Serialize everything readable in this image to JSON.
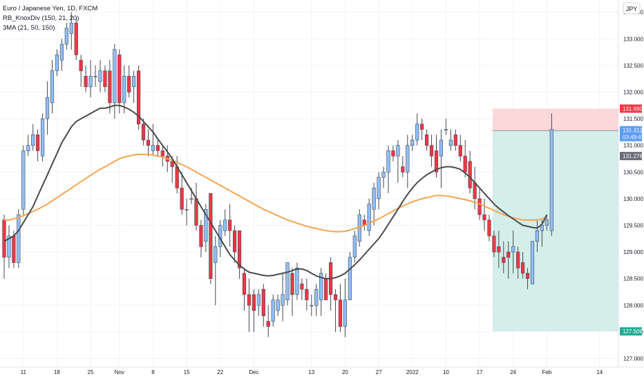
{
  "header": {
    "symbol_line": "Euro / Japanese Yen, 1D, FXCM",
    "indicator_1": "RB_KnoxDiv (150, 21, 20)",
    "indicator_2": "3MA (21, 50, 150)",
    "currency_badge": "JPY"
  },
  "colors": {
    "up": "#90bff9",
    "down": "#f23645",
    "wick": "#434651",
    "ma_fast": "#4a4a4a",
    "ma_slow": "#f7a350",
    "stop_zone": "#fbd1d5",
    "target_zone": "#cdebe5",
    "stop_tag": "#f23645",
    "entry_tag": "#5b9cf6",
    "current_tag": "#6a6d78",
    "target_tag": "#22ab94"
  },
  "price_tags": {
    "stop": "131.690",
    "current_price": "131.312",
    "countdown": "03:49:47",
    "entry": "131.276",
    "target": "127.509"
  },
  "chart_data": {
    "type": "candlestick",
    "x_ticks": [
      "11",
      "18",
      "25",
      "Nov",
      "8",
      "15",
      "22",
      "Dec",
      "13",
      "20",
      "27",
      "2022",
      "10",
      "17",
      "24",
      "Feb",
      "14"
    ],
    "y_ticks": [
      "127.000",
      "127.500",
      "128.000",
      "128.500",
      "129.000",
      "129.500",
      "130.000",
      "130.500",
      "131.000",
      "131.500",
      "132.000",
      "132.500",
      "133.000",
      "133.500"
    ],
    "ylim": [
      126.8,
      133.9
    ],
    "candles": [
      [
        129.6,
        129.7,
        128.5,
        128.9
      ],
      [
        128.9,
        129.5,
        128.7,
        129.3
      ],
      [
        129.3,
        129.4,
        128.7,
        128.8
      ],
      [
        128.8,
        129.8,
        128.7,
        129.7
      ],
      [
        129.8,
        131.0,
        129.7,
        130.9
      ],
      [
        130.9,
        131.2,
        130.8,
        131.0
      ],
      [
        131.0,
        131.4,
        130.9,
        131.2
      ],
      [
        131.2,
        131.3,
        130.7,
        130.9
      ],
      [
        130.8,
        131.6,
        130.7,
        131.5
      ],
      [
        131.5,
        132.2,
        131.2,
        131.9
      ],
      [
        131.8,
        132.6,
        131.6,
        132.4
      ],
      [
        132.4,
        132.8,
        132.3,
        132.7
      ],
      [
        132.6,
        133.0,
        132.4,
        132.9
      ],
      [
        132.9,
        133.3,
        132.8,
        133.2
      ],
      [
        133.1,
        133.5,
        132.8,
        133.3
      ],
      [
        133.3,
        133.4,
        132.6,
        132.7
      ],
      [
        132.6,
        132.7,
        132.1,
        132.4
      ],
      [
        132.3,
        132.5,
        132.0,
        132.1
      ],
      [
        132.1,
        132.6,
        131.9,
        132.3
      ],
      [
        132.3,
        132.5,
        132.1,
        132.3
      ],
      [
        132.2,
        132.6,
        132.0,
        132.4
      ],
      [
        132.4,
        132.5,
        132.0,
        132.1
      ],
      [
        132.4,
        132.6,
        131.6,
        131.8
      ],
      [
        131.8,
        132.9,
        131.5,
        132.8
      ],
      [
        132.7,
        132.8,
        131.6,
        131.8
      ],
      [
        131.8,
        132.5,
        131.6,
        132.3
      ],
      [
        132.3,
        132.5,
        131.9,
        132.0
      ],
      [
        132.1,
        132.4,
        131.8,
        132.3
      ],
      [
        132.4,
        132.5,
        131.3,
        131.4
      ],
      [
        131.4,
        131.5,
        131.0,
        131.1
      ],
      [
        131.1,
        131.3,
        130.8,
        131.0
      ],
      [
        130.9,
        131.4,
        130.8,
        131.0
      ],
      [
        131.0,
        131.1,
        130.8,
        130.9
      ],
      [
        130.9,
        131.0,
        130.6,
        130.8
      ],
      [
        130.8,
        131.0,
        130.5,
        130.7
      ],
      [
        130.7,
        130.8,
        130.3,
        130.6
      ],
      [
        130.6,
        130.8,
        130.1,
        130.2
      ],
      [
        130.2,
        130.5,
        129.7,
        129.8
      ],
      [
        129.8,
        130.0,
        129.5,
        129.8
      ],
      [
        130.0,
        130.2,
        129.9,
        130.0
      ],
      [
        130.0,
        130.3,
        129.4,
        129.5
      ],
      [
        129.5,
        129.6,
        128.9,
        129.1
      ],
      [
        129.2,
        129.9,
        129.0,
        129.8
      ],
      [
        130.1,
        130.1,
        128.4,
        128.5
      ],
      [
        128.8,
        129.3,
        128.0,
        129.1
      ],
      [
        129.1,
        129.6,
        128.9,
        129.5
      ],
      [
        129.4,
        129.8,
        129.3,
        129.6
      ],
      [
        129.6,
        129.9,
        129.1,
        129.4
      ],
      [
        129.4,
        129.5,
        128.8,
        129.0
      ],
      [
        129.4,
        129.4,
        128.5,
        128.7
      ],
      [
        128.6,
        128.7,
        127.9,
        128.2
      ],
      [
        128.2,
        128.5,
        127.5,
        128.0
      ],
      [
        128.2,
        128.3,
        127.5,
        127.9
      ],
      [
        128.0,
        128.3,
        127.8,
        128.2
      ],
      [
        128.3,
        128.4,
        127.6,
        127.8
      ],
      [
        127.7,
        128.0,
        127.4,
        127.6
      ],
      [
        127.7,
        128.2,
        127.6,
        128.1
      ],
      [
        127.9,
        128.2,
        127.8,
        128.1
      ],
      [
        128.0,
        128.6,
        127.7,
        128.2
      ],
      [
        128.1,
        128.8,
        128.0,
        128.8
      ],
      [
        128.6,
        128.7,
        127.8,
        128.2
      ],
      [
        128.2,
        128.8,
        128.1,
        128.7
      ],
      [
        128.4,
        128.5,
        128.1,
        128.3
      ],
      [
        128.3,
        128.5,
        127.9,
        128.1
      ],
      [
        128.0,
        128.2,
        127.8,
        128.0
      ],
      [
        128.0,
        128.4,
        127.8,
        128.3
      ],
      [
        128.1,
        128.7,
        127.8,
        128.6
      ],
      [
        128.5,
        128.6,
        128.1,
        128.1
      ],
      [
        128.8,
        128.9,
        127.9,
        128.2
      ],
      [
        128.2,
        128.3,
        127.5,
        128.1
      ],
      [
        128.1,
        128.4,
        127.5,
        127.6
      ],
      [
        127.6,
        128.5,
        127.4,
        128.1
      ],
      [
        128.1,
        129.0,
        128.1,
        128.9
      ],
      [
        128.9,
        129.4,
        128.8,
        129.3
      ],
      [
        129.2,
        129.8,
        129.1,
        129.7
      ],
      [
        129.6,
        129.7,
        129.4,
        129.5
      ],
      [
        129.4,
        130.0,
        129.3,
        129.9
      ],
      [
        129.8,
        130.3,
        129.5,
        130.2
      ],
      [
        130.0,
        130.5,
        129.8,
        130.4
      ],
      [
        130.4,
        130.6,
        130.2,
        130.5
      ],
      [
        130.5,
        131.0,
        130.1,
        130.9
      ],
      [
        130.9,
        131.0,
        130.7,
        130.8
      ],
      [
        130.8,
        131.1,
        130.3,
        131.0
      ],
      [
        130.6,
        130.8,
        130.4,
        130.5
      ],
      [
        130.5,
        131.2,
        130.2,
        131.0
      ],
      [
        131.0,
        131.2,
        130.9,
        131.1
      ],
      [
        131.1,
        131.6,
        131.0,
        131.4
      ],
      [
        131.4,
        131.5,
        131.1,
        131.3
      ],
      [
        131.2,
        131.3,
        130.9,
        131.0
      ],
      [
        131.0,
        131.2,
        130.6,
        130.8
      ],
      [
        130.9,
        131.2,
        130.4,
        130.5
      ],
      [
        130.8,
        131.3,
        130.2,
        131.1
      ],
      [
        131.3,
        131.5,
        131.2,
        131.3
      ],
      [
        131.0,
        131.3,
        130.9,
        131.1
      ],
      [
        131.2,
        131.3,
        130.9,
        131.0
      ],
      [
        131.0,
        131.2,
        130.7,
        130.8
      ],
      [
        130.8,
        131.1,
        130.4,
        130.5
      ],
      [
        130.7,
        130.9,
        130.1,
        130.2
      ],
      [
        130.3,
        130.6,
        129.8,
        130.0
      ],
      [
        130.0,
        130.2,
        129.6,
        129.7
      ],
      [
        129.7,
        130.0,
        129.4,
        129.6
      ],
      [
        129.6,
        129.7,
        129.2,
        129.3
      ],
      [
        129.3,
        129.4,
        128.9,
        129.0
      ],
      [
        129.1,
        129.4,
        128.7,
        129.0
      ],
      [
        128.9,
        129.2,
        128.6,
        128.8
      ],
      [
        129.0,
        129.2,
        128.5,
        128.9
      ],
      [
        129.0,
        129.4,
        128.6,
        129.1
      ],
      [
        129.0,
        129.1,
        128.5,
        128.7
      ],
      [
        128.8,
        129.0,
        128.5,
        128.6
      ],
      [
        128.6,
        128.7,
        128.3,
        128.5
      ],
      [
        128.4,
        129.2,
        128.4,
        129.2
      ],
      [
        129.2,
        129.6,
        129.0,
        129.4
      ],
      [
        129.4,
        129.6,
        129.1,
        129.5
      ],
      [
        129.5,
        129.7,
        129.4,
        129.6
      ],
      [
        129.4,
        131.6,
        129.3,
        131.3
      ]
    ],
    "ma_fast": [
      129.2,
      129.25,
      129.3,
      129.4,
      129.55,
      129.7,
      129.85,
      130.05,
      130.25,
      130.45,
      130.65,
      130.85,
      131.05,
      131.2,
      131.35,
      131.45,
      131.5,
      131.55,
      131.6,
      131.65,
      131.7,
      131.7,
      131.72,
      131.75,
      131.75,
      131.72,
      131.68,
      131.62,
      131.55,
      131.45,
      131.35,
      131.25,
      131.12,
      131.0,
      130.88,
      130.75,
      130.6,
      130.45,
      130.3,
      130.15,
      130.0,
      129.85,
      129.7,
      129.55,
      129.4,
      129.25,
      129.1,
      128.95,
      128.85,
      128.75,
      128.68,
      128.62,
      128.6,
      128.58,
      128.56,
      128.55,
      128.56,
      128.58,
      128.6,
      128.62,
      128.65,
      128.68,
      128.68,
      128.65,
      128.6,
      128.55,
      128.52,
      128.5,
      128.5,
      128.52,
      128.55,
      128.6,
      128.68,
      128.76,
      128.85,
      128.95,
      129.05,
      129.15,
      129.25,
      129.38,
      129.52,
      129.66,
      129.8,
      129.95,
      130.08,
      130.2,
      130.3,
      130.38,
      130.45,
      130.5,
      130.55,
      130.58,
      130.6,
      130.6,
      130.58,
      130.55,
      130.48,
      130.4,
      130.3,
      130.2,
      130.1,
      130.0,
      129.9,
      129.82,
      129.75,
      129.68,
      129.62,
      129.56,
      129.5,
      129.48,
      129.46,
      129.45,
      129.52,
      129.7
    ],
    "ma_slow": [
      129.6,
      129.6,
      129.62,
      129.65,
      129.68,
      129.72,
      129.76,
      129.8,
      129.85,
      129.9,
      129.96,
      130.02,
      130.08,
      130.14,
      130.2,
      130.26,
      130.32,
      130.38,
      130.44,
      130.5,
      130.55,
      130.6,
      130.65,
      130.7,
      130.75,
      130.78,
      130.8,
      130.82,
      130.83,
      130.83,
      130.83,
      130.82,
      130.8,
      130.78,
      130.75,
      130.72,
      130.68,
      130.64,
      130.6,
      130.55,
      130.5,
      130.45,
      130.4,
      130.35,
      130.3,
      130.25,
      130.2,
      130.15,
      130.1,
      130.05,
      130.0,
      129.95,
      129.9,
      129.85,
      129.8,
      129.76,
      129.72,
      129.68,
      129.64,
      129.6,
      129.57,
      129.54,
      129.51,
      129.48,
      129.46,
      129.44,
      129.42,
      129.4,
      129.39,
      129.38,
      129.38,
      129.39,
      129.41,
      129.44,
      129.47,
      129.5,
      129.54,
      129.58,
      129.62,
      129.67,
      129.72,
      129.77,
      129.82,
      129.86,
      129.9,
      129.94,
      129.97,
      130.0,
      130.02,
      130.04,
      130.06,
      130.06,
      130.05,
      130.04,
      130.02,
      130.0,
      129.98,
      129.96,
      129.93,
      129.9,
      129.86,
      129.82,
      129.78,
      129.74,
      129.7,
      129.67,
      129.64,
      129.62,
      129.6,
      129.6,
      129.6,
      129.6,
      129.62,
      129.66
    ],
    "position": {
      "entry": 131.276,
      "stop": 131.69,
      "target": 127.509,
      "start_index": 102
    }
  }
}
